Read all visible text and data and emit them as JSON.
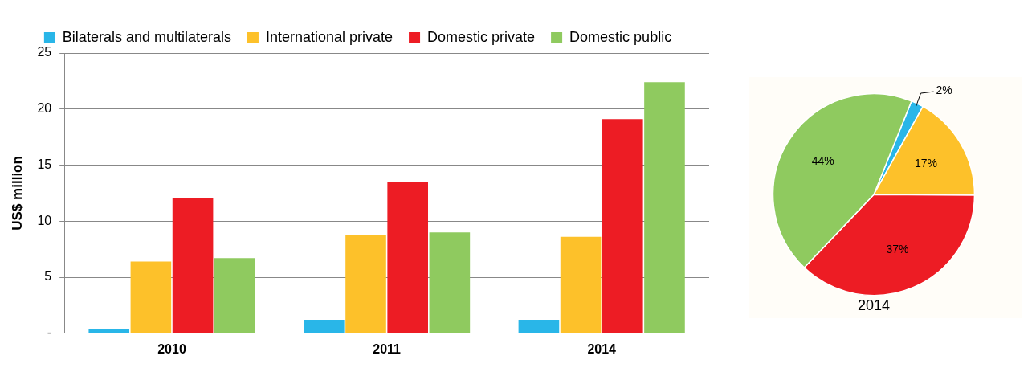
{
  "chart_data": [
    {
      "type": "bar",
      "ylabel": "US$ million",
      "categories": [
        "2010",
        "2011",
        "2014"
      ],
      "series": [
        {
          "name": "Bilaterals and multilaterals",
          "color": "#29b6e8",
          "values": [
            0.4,
            1.2,
            1.2
          ]
        },
        {
          "name": "International private",
          "color": "#fdc12a",
          "values": [
            6.4,
            8.8,
            8.6
          ]
        },
        {
          "name": "Domestic private",
          "color": "#ed1c24",
          "values": [
            12.1,
            13.5,
            19.1
          ]
        },
        {
          "name": "Domestic public",
          "color": "#8fca5f",
          "values": [
            6.7,
            9.0,
            22.4
          ]
        }
      ],
      "ylim": [
        0,
        25
      ],
      "yticks": [
        {
          "value": 0,
          "label": "-"
        },
        5,
        10,
        15,
        20,
        25
      ],
      "grid": "y",
      "legend": "top"
    },
    {
      "type": "pie",
      "title": "2014",
      "categories": [
        null,
        null,
        null,
        null
      ],
      "values": [
        2,
        17,
        37,
        44
      ],
      "value_labels": [
        "2%",
        "17%",
        "37%",
        "44%"
      ],
      "colors": [
        "#29b6e8",
        "#fdc12a",
        "#ed1c24",
        "#8fca5f"
      ],
      "legend": false
    }
  ]
}
